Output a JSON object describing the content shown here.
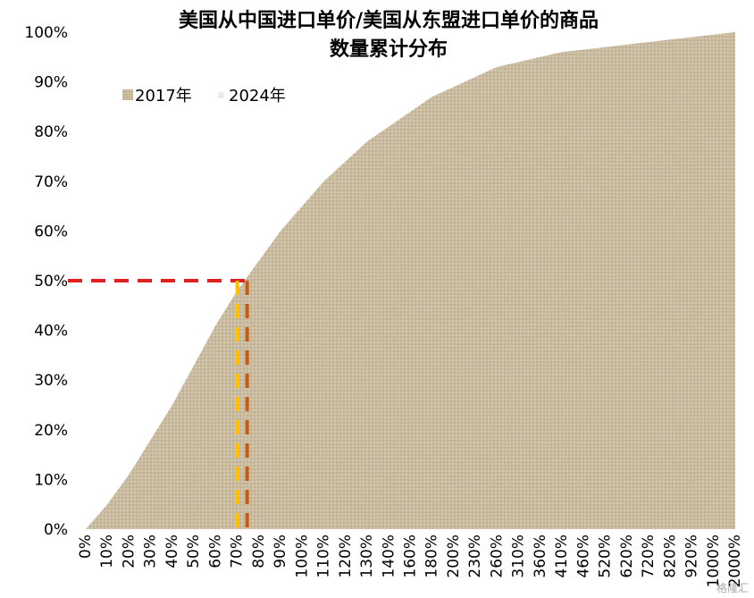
{
  "chart_data": {
    "type": "area",
    "title_lines": [
      "美国从中国进口单价/美国从东盟进口单价的商品",
      "数量累计分布"
    ],
    "x_tick_labels": [
      "0%",
      "10%",
      "20%",
      "30%",
      "40%",
      "50%",
      "60%",
      "70%",
      "80%",
      "90%",
      "100%",
      "110%",
      "120%",
      "130%",
      "140%",
      "160%",
      "180%",
      "200%",
      "230%",
      "260%",
      "310%",
      "360%",
      "410%",
      "460%",
      "520%",
      "620%",
      "720%",
      "820%",
      "920%",
      "1000%",
      "2000%"
    ],
    "y_tick_labels": [
      "0%",
      "10%",
      "20%",
      "30%",
      "40%",
      "50%",
      "60%",
      "70%",
      "80%",
      "90%",
      "100%"
    ],
    "ylim": [
      0,
      100
    ],
    "series": [
      {
        "name": "2017年",
        "color": "#c9b99a",
        "style": "textured-fill",
        "values": [
          0,
          5,
          11,
          18,
          25,
          33,
          41,
          48,
          54,
          60,
          65,
          70,
          74,
          78,
          81,
          84,
          87,
          89,
          91,
          93,
          94,
          95,
          96,
          96.5,
          97,
          97.5,
          98,
          98.5,
          99,
          99.5,
          100
        ]
      },
      {
        "name": "2024年",
        "color": "#e8e8e8",
        "style": "textured-fill",
        "values": [
          0,
          5,
          11,
          18,
          25,
          33,
          41,
          48,
          54,
          60,
          65,
          70,
          74,
          78,
          81,
          84,
          87,
          89,
          91,
          93,
          94,
          95,
          96,
          96.5,
          97,
          97.5,
          98,
          98.5,
          99,
          99.5,
          100
        ]
      }
    ],
    "reference_lines": [
      {
        "axis": "y",
        "value": 50,
        "color": "#e02020",
        "style": "dashed"
      },
      {
        "axis": "x",
        "at_tick": "70%",
        "color": "#ffc000",
        "style": "dashed"
      },
      {
        "axis": "x",
        "at_tick": "70%",
        "color": "#c55a11",
        "style": "dashed"
      }
    ],
    "legend_placement": "top-left",
    "grid": false
  },
  "watermark": "格隆汇"
}
